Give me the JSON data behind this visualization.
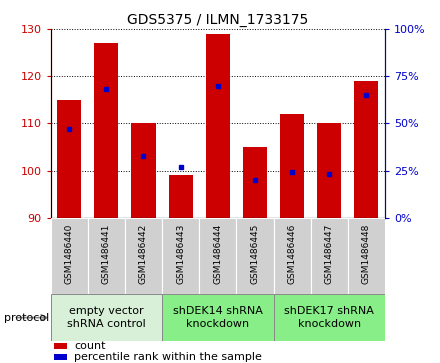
{
  "title": "GDS5375 / ILMN_1733175",
  "samples": [
    "GSM1486440",
    "GSM1486441",
    "GSM1486442",
    "GSM1486443",
    "GSM1486444",
    "GSM1486445",
    "GSM1486446",
    "GSM1486447",
    "GSM1486448"
  ],
  "counts": [
    115,
    127,
    110,
    99,
    129,
    105,
    112,
    110,
    119
  ],
  "percentiles": [
    47,
    68,
    33,
    27,
    70,
    20,
    24,
    23,
    65
  ],
  "ylim_left": [
    90,
    130
  ],
  "ylim_right": [
    0,
    100
  ],
  "yticks_left": [
    90,
    100,
    110,
    120,
    130
  ],
  "yticks_right": [
    0,
    25,
    50,
    75,
    100
  ],
  "ytick_labels_right": [
    "0%",
    "25%",
    "50%",
    "75%",
    "100%"
  ],
  "bar_color": "#cc0000",
  "dot_color": "#0000cc",
  "bar_bottom": 90,
  "protocols": [
    {
      "label": "empty vector\nshRNA control",
      "start": 0,
      "end": 3,
      "color": "#d8f0d8"
    },
    {
      "label": "shDEK14 shRNA\nknockdown",
      "start": 3,
      "end": 6,
      "color": "#88ee88"
    },
    {
      "label": "shDEK17 shRNA\nknockdown",
      "start": 6,
      "end": 9,
      "color": "#88ee88"
    }
  ],
  "protocol_label": "protocol",
  "legend_count_label": "count",
  "legend_pct_label": "percentile rank within the sample",
  "title_fontsize": 10,
  "tick_fontsize": 8,
  "sample_label_fontsize": 6.5,
  "legend_fontsize": 8,
  "protocol_fontsize": 8
}
